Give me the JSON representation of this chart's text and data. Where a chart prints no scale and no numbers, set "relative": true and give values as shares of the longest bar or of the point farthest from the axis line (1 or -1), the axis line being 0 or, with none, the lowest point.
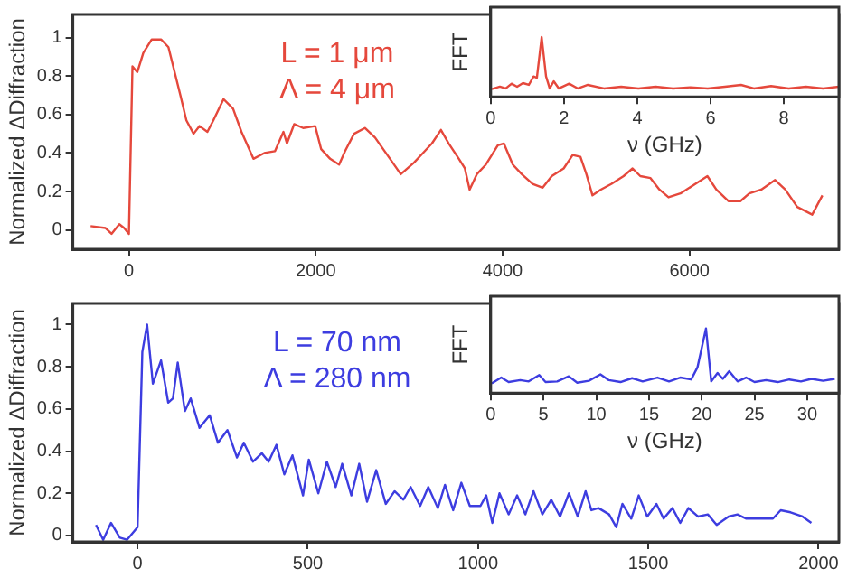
{
  "chart_data": [
    {
      "type": "line",
      "ylabel": "Normalized ΔDiffraction",
      "annotations": [
        "L = 1 μm",
        "Λ = 4 μm"
      ],
      "xlim": [
        -600,
        7600
      ],
      "xticks": [
        0,
        2000,
        4000,
        6000
      ],
      "ylim": [
        -0.1,
        1.12
      ],
      "yticks": [
        0,
        0.2,
        0.4,
        0.6,
        0.8,
        1
      ],
      "legend": false,
      "marker": "none",
      "line_style": "solid",
      "x": [
        -410,
        -250,
        -186,
        -103,
        -51,
        0,
        38,
        90,
        154,
        244,
        346,
        423,
        551,
        615,
        692,
        756,
        840,
        904,
        1013,
        1115,
        1205,
        1333,
        1449,
        1564,
        1654,
        1692,
        1769,
        1865,
        1994,
        2058,
        2154,
        2250,
        2314,
        2410,
        2526,
        2635,
        2795,
        2910,
        3051,
        3147,
        3244,
        3340,
        3423,
        3532,
        3596,
        3647,
        3724,
        3821,
        3898,
        3949,
        4013,
        4109,
        4205,
        4321,
        4429,
        4526,
        4654,
        4750,
        4833,
        4897,
        4962,
        5051,
        5167,
        5295,
        5391,
        5474,
        5583,
        5679,
        5776,
        5904,
        6032,
        6192,
        6288,
        6417,
        6545,
        6641,
        6769,
        6917,
        7026,
        7154,
        7314,
        7423
      ],
      "series": [
        {
          "color": "#e5483c",
          "values": [
            0.02,
            0.01,
            -0.02,
            0.03,
            0.01,
            -0.02,
            0.85,
            0.82,
            0.92,
            0.99,
            0.99,
            0.95,
            0.7,
            0.57,
            0.5,
            0.54,
            0.51,
            0.57,
            0.68,
            0.63,
            0.51,
            0.37,
            0.4,
            0.41,
            0.51,
            0.45,
            0.55,
            0.53,
            0.54,
            0.42,
            0.37,
            0.34,
            0.41,
            0.5,
            0.53,
            0.48,
            0.37,
            0.29,
            0.35,
            0.4,
            0.45,
            0.52,
            0.45,
            0.37,
            0.32,
            0.21,
            0.29,
            0.34,
            0.4,
            0.44,
            0.45,
            0.34,
            0.29,
            0.24,
            0.22,
            0.28,
            0.32,
            0.39,
            0.38,
            0.29,
            0.18,
            0.21,
            0.24,
            0.28,
            0.32,
            0.28,
            0.27,
            0.21,
            0.17,
            0.19,
            0.23,
            0.28,
            0.21,
            0.15,
            0.15,
            0.19,
            0.21,
            0.26,
            0.21,
            0.12,
            0.08,
            0.18
          ]
        }
      ]
    },
    {
      "type": "line",
      "xlabel": "ν (GHz)",
      "ylabel": "FFT",
      "relative": true,
      "tick_labels": "x",
      "xlim": [
        0,
        9.5
      ],
      "xticks": [
        0,
        2,
        4,
        6,
        8
      ],
      "legend": false,
      "marker": "none",
      "line_style": "solid",
      "x": [
        0.03,
        0.25,
        0.41,
        0.57,
        0.72,
        0.88,
        1.04,
        1.17,
        1.26,
        1.39,
        1.51,
        1.61,
        1.72,
        1.86,
        2.14,
        2.38,
        2.65,
        3.09,
        3.56,
        4.03,
        4.5,
        4.98,
        5.45,
        5.92,
        6.39,
        6.83,
        7.18,
        7.65,
        8.13,
        8.6,
        9.07,
        9.5
      ],
      "series": [
        {
          "color": "#e5483c",
          "values": [
            0.13,
            0.17,
            0.14,
            0.22,
            0.17,
            0.23,
            0.2,
            0.34,
            0.32,
            1,
            0.34,
            0.14,
            0.26,
            0.14,
            0.22,
            0.14,
            0.2,
            0.14,
            0.17,
            0.14,
            0.17,
            0.14,
            0.16,
            0.14,
            0.17,
            0.2,
            0.14,
            0.18,
            0.14,
            0.17,
            0.14,
            0.17
          ]
        }
      ]
    },
    {
      "type": "line",
      "ylabel": "Normalized ΔDiffraction",
      "annotations": [
        "L = 70 nm",
        "Λ = 280 nm"
      ],
      "xlim": [
        -190,
        2060
      ],
      "xticks": [
        0,
        500,
        1000,
        1500,
        2000
      ],
      "ylim": [
        -0.03,
        1.1
      ],
      "yticks": [
        0,
        0.2,
        0.4,
        0.6,
        0.8,
        1
      ],
      "legend": false,
      "marker": "none",
      "line_style": "solid",
      "x": [
        -122,
        -101,
        -78,
        -52,
        -31,
        0,
        14,
        28,
        45,
        69,
        90,
        104,
        118,
        139,
        156,
        182,
        212,
        236,
        264,
        292,
        312,
        339,
        365,
        385,
        408,
        431,
        455,
        486,
        503,
        531,
        556,
        582,
        601,
        628,
        651,
        674,
        701,
        729,
        755,
        781,
        802,
        830,
        854,
        882,
        903,
        927,
        951,
        976,
        1007,
        1024,
        1042,
        1063,
        1090,
        1115,
        1139,
        1163,
        1189,
        1215,
        1241,
        1267,
        1293,
        1316,
        1333,
        1354,
        1385,
        1406,
        1424,
        1450,
        1472,
        1497,
        1524,
        1545,
        1571,
        1594,
        1618,
        1646,
        1675,
        1701,
        1736,
        1762,
        1788,
        1823,
        1866,
        1889,
        1918,
        1953,
        1979
      ],
      "series": [
        {
          "color": "#3d3de0",
          "values": [
            0.05,
            -0.02,
            0.06,
            -0.01,
            -0.02,
            0.04,
            0.87,
            1,
            0.72,
            0.83,
            0.63,
            0.65,
            0.82,
            0.59,
            0.65,
            0.51,
            0.57,
            0.44,
            0.5,
            0.37,
            0.44,
            0.35,
            0.39,
            0.35,
            0.43,
            0.29,
            0.38,
            0.19,
            0.36,
            0.2,
            0.35,
            0.23,
            0.34,
            0.19,
            0.34,
            0.16,
            0.31,
            0.15,
            0.21,
            0.17,
            0.23,
            0.14,
            0.23,
            0.13,
            0.24,
            0.12,
            0.25,
            0.14,
            0.14,
            0.19,
            0.06,
            0.2,
            0.1,
            0.19,
            0.1,
            0.21,
            0.1,
            0.17,
            0.09,
            0.2,
            0.09,
            0.21,
            0.12,
            0.13,
            0.1,
            0.04,
            0.15,
            0.08,
            0.19,
            0.09,
            0.15,
            0.08,
            0.13,
            0.06,
            0.13,
            0.09,
            0.1,
            0.05,
            0.09,
            0.1,
            0.08,
            0.08,
            0.08,
            0.12,
            0.11,
            0.09,
            0.06
          ]
        }
      ]
    },
    {
      "type": "line",
      "xlabel": "ν (GHz)",
      "ylabel": "FFT",
      "relative": true,
      "tick_labels": "x",
      "xlim": [
        0,
        33
      ],
      "xticks": [
        0,
        5,
        10,
        15,
        20,
        25,
        30
      ],
      "legend": false,
      "marker": "none",
      "line_style": "solid",
      "x": [
        0.1,
        1,
        1.7,
        2.8,
        3.6,
        4.6,
        5.2,
        6.3,
        7.4,
        8.2,
        9.3,
        10.4,
        11.2,
        12.3,
        13.4,
        14.4,
        15.8,
        16.9,
        17.96,
        19,
        19.6,
        20.4,
        20.9,
        21.5,
        22,
        22.6,
        23.4,
        24.2,
        25,
        26.1,
        27.2,
        28.3,
        29.4,
        30.4,
        31.5,
        32.6
      ],
      "series": [
        {
          "color": "#3d3de0",
          "values": [
            0.15,
            0.24,
            0.17,
            0.2,
            0.18,
            0.28,
            0.17,
            0.18,
            0.26,
            0.16,
            0.19,
            0.29,
            0.2,
            0.17,
            0.23,
            0.18,
            0.24,
            0.18,
            0.24,
            0.21,
            0.4,
            1,
            0.18,
            0.31,
            0.22,
            0.34,
            0.18,
            0.24,
            0.17,
            0.2,
            0.17,
            0.21,
            0.18,
            0.22,
            0.19,
            0.22
          ]
        }
      ]
    }
  ]
}
